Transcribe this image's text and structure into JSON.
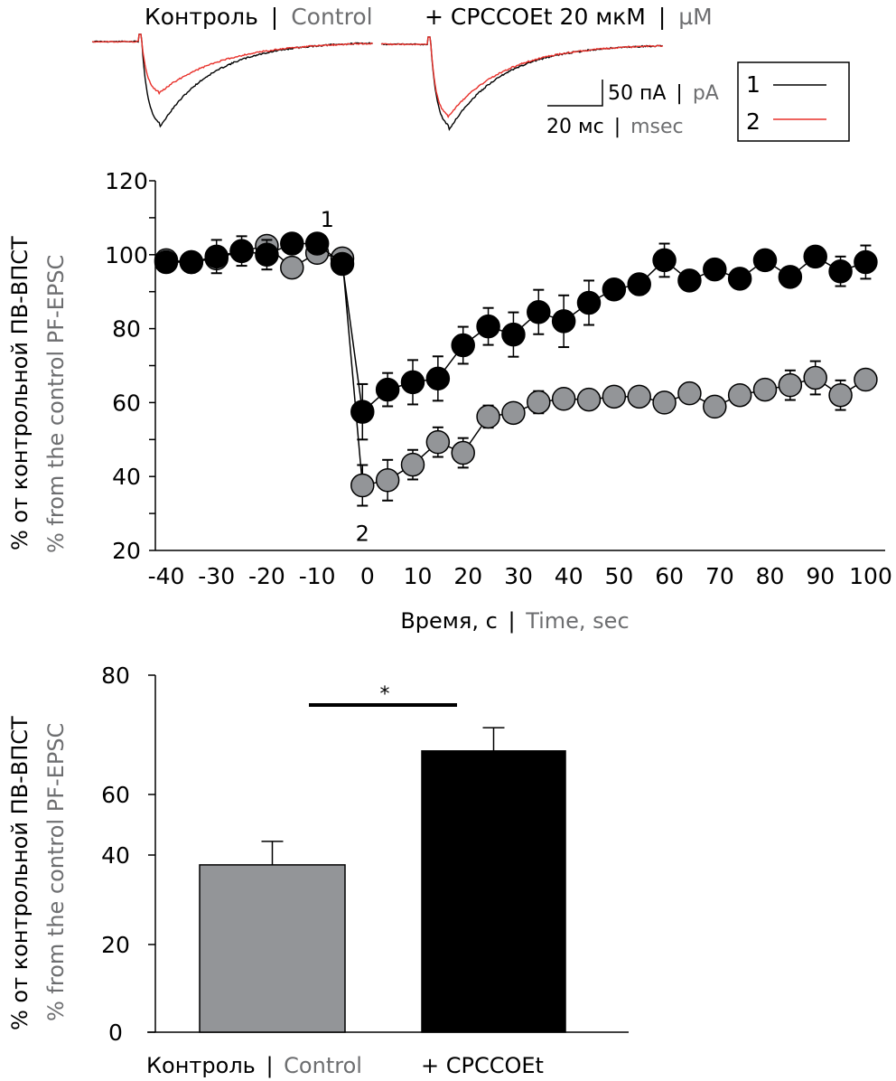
{
  "traces_panel": {
    "control_title_ru": "Контроль",
    "control_title_en": "Control",
    "drug_title_ru": "+ CPCCOEt 20 мкМ",
    "drug_title_en": "µM",
    "separator": "|",
    "scale_current_ru": "50 пА",
    "scale_current_en": "pA",
    "scale_time_ru": "20 мс",
    "scale_time_en": "msec",
    "legend": [
      {
        "label": "1",
        "color": "#000000"
      },
      {
        "label": "2",
        "color": "#e8302a"
      }
    ],
    "trace_colors": {
      "trace1": "#000000",
      "trace2": "#e8302a"
    },
    "relative_peak_amplitude": {
      "control": {
        "trace1": 1.0,
        "trace2": 0.61
      },
      "cpccoet": {
        "trace1": 1.0,
        "trace2": 0.86
      }
    }
  },
  "chart_data": [
    {
      "type": "scatter",
      "title": "",
      "xlabel_ru": "Время, с",
      "xlabel_en": "Time, sec",
      "ylabel_ru": "% от контрольной ПВ-ВПСТ",
      "ylabel_en": "% from the control PF-EPSC",
      "xlim": [
        -42,
        102
      ],
      "ylim": [
        20,
        120
      ],
      "xticks": [
        "-40",
        "-30",
        "-20",
        "-10",
        "0",
        "10",
        "20",
        "30",
        "40",
        "50",
        "60",
        "70",
        "80",
        "90",
        "100"
      ],
      "yticks": [
        "20",
        "40",
        "60",
        "80",
        "100",
        "120"
      ],
      "annotations": [
        {
          "text": "1",
          "x": -8,
          "y": 110
        },
        {
          "text": "2",
          "x": -1,
          "y": 25
        }
      ],
      "series": [
        {
          "name": "Control",
          "color": "#939598",
          "x": [
            -40,
            -35,
            -30,
            -25,
            -20,
            -15,
            -10,
            -5,
            -1,
            4,
            9,
            14,
            19,
            24,
            29,
            34,
            39,
            44,
            49,
            54,
            59,
            64,
            69,
            74,
            79,
            84,
            89,
            94,
            99
          ],
          "y": [
            98.5,
            98,
            99,
            101,
            102.4,
            96.5,
            100.5,
            99,
            37.6,
            39,
            43.2,
            49.3,
            46.4,
            56.2,
            57.2,
            60.1,
            61,
            60.8,
            61.6,
            61.6,
            60,
            62.5,
            58.9,
            62,
            63.5,
            64.7,
            66.7,
            62,
            66.2
          ],
          "err": [
            0,
            0,
            0,
            0,
            0,
            0,
            0,
            0,
            5.5,
            5.5,
            4,
            4,
            4,
            3,
            2.5,
            3,
            0,
            2.5,
            0,
            0,
            0,
            0,
            0,
            2,
            2,
            4,
            4.5,
            4,
            2
          ]
        },
        {
          "name": "+ CPCCOEt",
          "color": "#000000",
          "x": [
            -40,
            -35,
            -30,
            -25,
            -20,
            -15,
            -10,
            -5,
            -1,
            4,
            9,
            14,
            19,
            24,
            29,
            34,
            39,
            44,
            49,
            54,
            59,
            64,
            69,
            74,
            79,
            84,
            89,
            94,
            99
          ],
          "y": [
            98,
            98,
            99.5,
            101,
            100,
            103,
            103,
            97.5,
            57.5,
            63.5,
            65.5,
            66.5,
            75.5,
            80.6,
            78.4,
            84.5,
            82,
            87,
            90.6,
            92,
            98.5,
            93,
            96,
            93.5,
            98.5,
            94,
            99.5,
            95.5,
            98
          ],
          "err": [
            0,
            0,
            4.5,
            4,
            4,
            0,
            0,
            0,
            7.5,
            4.5,
            6,
            6,
            5,
            5,
            6,
            6,
            7,
            6,
            0,
            0,
            4.5,
            0,
            0,
            0,
            0,
            0,
            0,
            4,
            4.5
          ]
        }
      ]
    },
    {
      "type": "bar",
      "title": "",
      "ylabel_ru": "% от контрольной ПВ-ВПСТ",
      "ylabel_en": "% from the control PF-EPSC",
      "categories": [
        {
          "label_ru": "Контроль",
          "label_en": "Control"
        },
        {
          "label_ru": "+ CPCCOEt",
          "label_en": ""
        }
      ],
      "values": [
        37.8,
        67.3
      ],
      "errors": [
        6.7,
        3.9
      ],
      "colors": [
        "#939598",
        "#000000"
      ],
      "ylim": [
        0,
        80
      ],
      "yticks": [
        "0",
        "20",
        "40",
        "60",
        "80"
      ],
      "significance": {
        "label": "*",
        "between": [
          0,
          1
        ]
      }
    }
  ]
}
